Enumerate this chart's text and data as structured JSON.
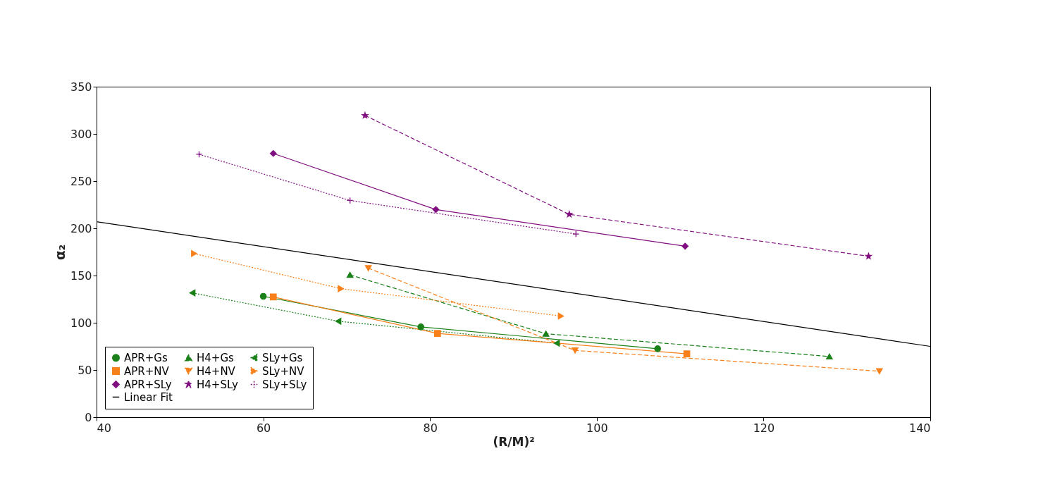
{
  "chart_data": {
    "type": "line",
    "xlabel": "(R/M)²",
    "ylabel": "α₂",
    "xlim": [
      40,
      140
    ],
    "xticks": [
      40,
      60,
      80,
      100,
      120,
      140
    ],
    "ylim": [
      0,
      350
    ],
    "yticks": [
      0,
      50,
      100,
      150,
      200,
      250,
      300,
      350
    ],
    "grid": false,
    "legend": "bottom left",
    "series": [
      {
        "name": "APR+Gs",
        "color": "#1a8019",
        "marker": "circle",
        "line_style": "solid",
        "x": [
          60.0,
          78.9,
          107.3
        ],
        "values": [
          128,
          95.6,
          72.5
        ]
      },
      {
        "name": "H4+Gs",
        "color": "#1a8019",
        "marker": "triangle-up",
        "line_style": "dashed",
        "x": [
          70.4,
          93.9,
          127.9
        ],
        "values": [
          150.7,
          88.4,
          64.3
        ]
      },
      {
        "name": "SLy+Gs",
        "color": "#1a8019",
        "marker": "triangle-left",
        "line_style": "dotted",
        "x": [
          51.5,
          69.0,
          95.2
        ],
        "values": [
          131.6,
          101.6,
          78.4
        ]
      },
      {
        "name": "APR+NV",
        "color": "#f7801a",
        "marker": "square",
        "line_style": "solid",
        "x": [
          61.2,
          80.9,
          110.8
        ],
        "values": [
          127.3,
          88.7,
          67.1
        ]
      },
      {
        "name": "H4+NV",
        "color": "#f7801a",
        "marker": "triangle-down",
        "line_style": "dashed",
        "x": [
          72.6,
          97.4,
          133.9
        ],
        "values": [
          157.8,
          70.7,
          48.7
        ]
      },
      {
        "name": "SLy+NV",
        "color": "#f7801a",
        "marker": "triangle-right",
        "line_style": "dotted",
        "x": [
          51.7,
          69.3,
          95.7
        ],
        "values": [
          173.3,
          136.1,
          107.1
        ]
      },
      {
        "name": "APR+SLy",
        "color": "#800f80",
        "marker": "diamond",
        "line_style": "solid",
        "x": [
          61.2,
          80.7,
          110.6
        ],
        "values": [
          279.3,
          219.9,
          181.1
        ]
      },
      {
        "name": "H4+SLy",
        "color": "#800f80",
        "marker": "star",
        "line_style": "dashed",
        "x": [
          72.2,
          96.7,
          132.6
        ],
        "values": [
          319.5,
          214.8,
          170.4
        ]
      },
      {
        "name": "SLy+SLy",
        "color": "#800f80",
        "marker": "cross",
        "line_style": "dotted",
        "x": [
          52.3,
          70.4,
          97.5
        ],
        "values": [
          278.4,
          229.5,
          194
        ]
      },
      {
        "name": "Linear Fit",
        "color": "#000000",
        "line_style": "solid",
        "x": [
          40,
          140
        ],
        "values": [
          207,
          75
        ]
      }
    ]
  }
}
